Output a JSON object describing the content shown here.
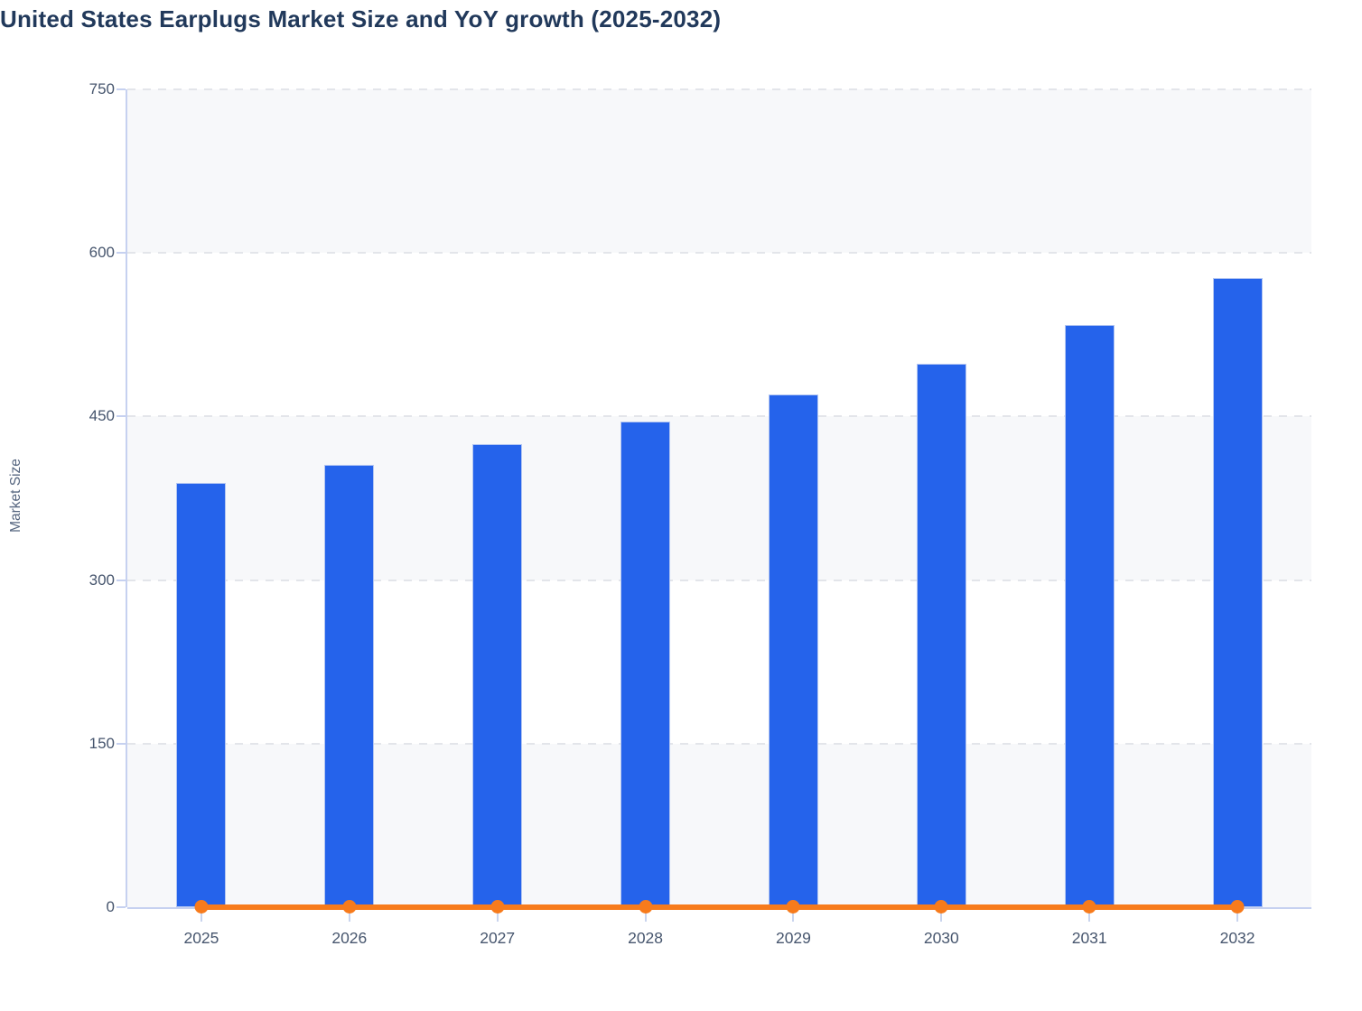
{
  "chart": {
    "title": "United States Earplugs Market Size and YoY growth (2025-2032)",
    "y_axis_title": "Market Size"
  },
  "chart_data": {
    "type": "bar",
    "title": "United States Earplugs Market Size and YoY growth (2025-2032)",
    "xlabel": "",
    "ylabel": "Market Size",
    "categories": [
      "2025",
      "2026",
      "2027",
      "2028",
      "2029",
      "2030",
      "2031",
      "2032"
    ],
    "series": [
      {
        "name": "Market Size",
        "type": "bar",
        "color": "#2563eb",
        "values": [
          389,
          406,
          425,
          445,
          470,
          498,
          534,
          577
        ]
      },
      {
        "name": "YoY growth",
        "type": "line",
        "color": "#f77b1c",
        "values": [
          4,
          4,
          5,
          5,
          6,
          6,
          7,
          8
        ],
        "note": "plotted on the same 0-750 axis, so it renders as a flat orange line with circular markers at ~0"
      }
    ],
    "ylim": [
      0,
      750
    ],
    "y_ticks": [
      750,
      600,
      450,
      300,
      150,
      0
    ],
    "grid": "dashed horizontal gridlines at each y tick",
    "plot_bands": "alternating light (#f7f8fa) and white horizontal bands between gridlines",
    "legend": "none"
  },
  "colors": {
    "bar_blue": "#2563eb",
    "line_orange": "#f77b1c",
    "title_text": "#21395b",
    "axis_text": "#47566e",
    "axis_line": "#c6d1f0",
    "gridline": "#e3e5ea",
    "band_light": "#f7f8fa",
    "background": "#ffffff"
  }
}
